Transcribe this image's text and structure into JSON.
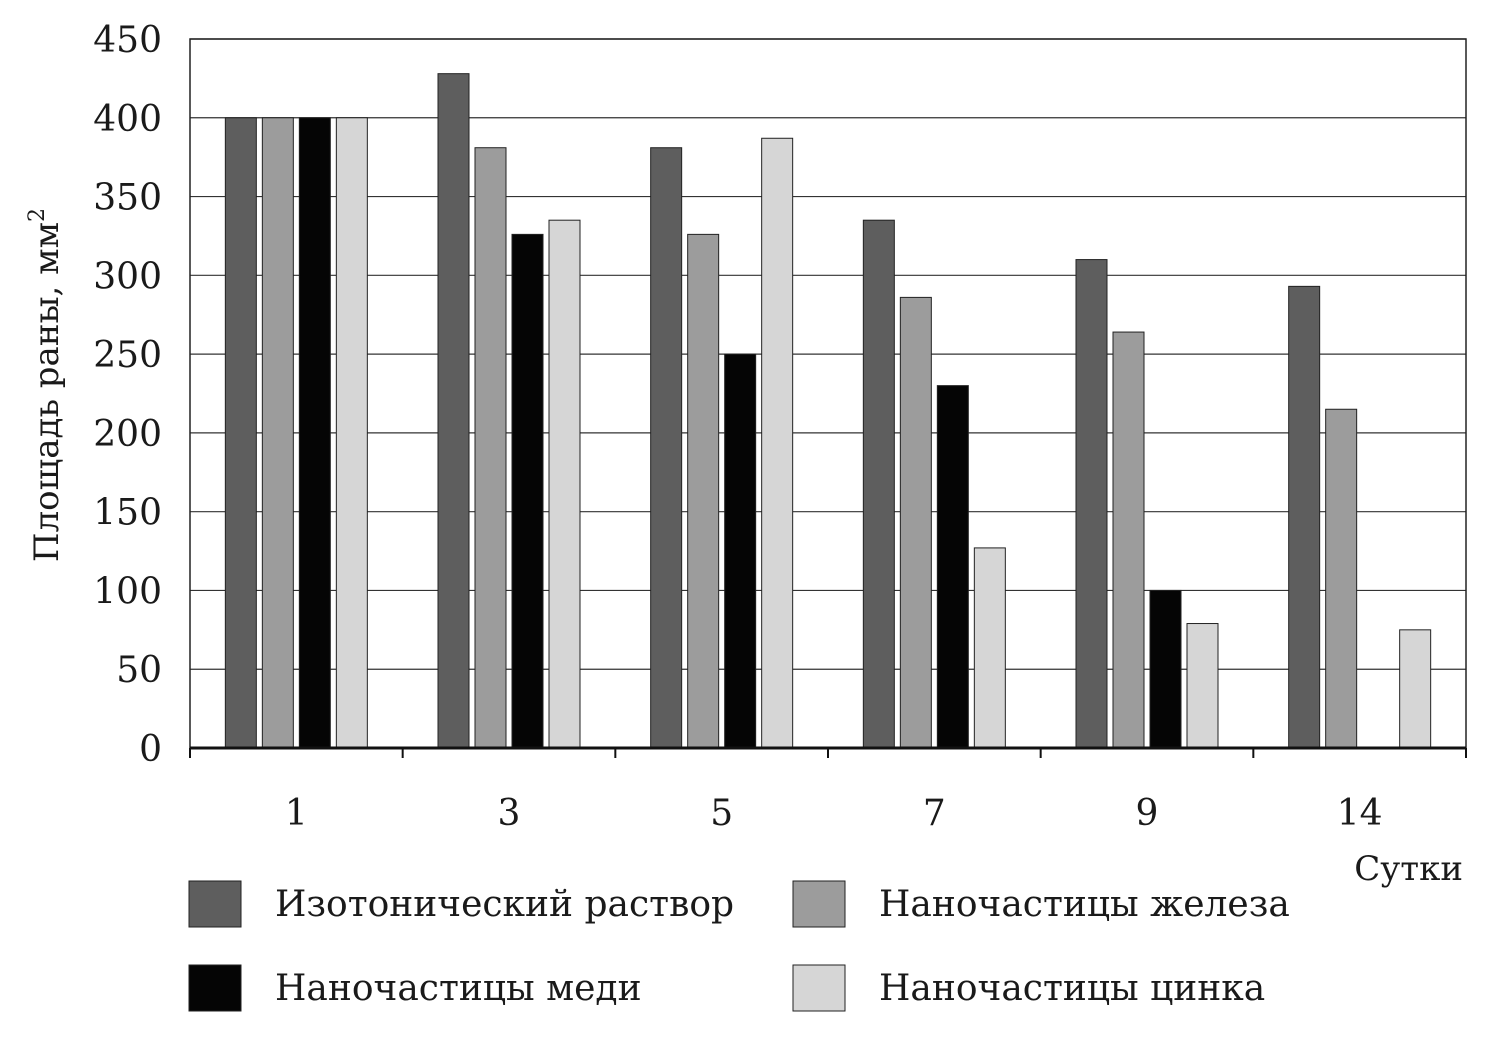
{
  "chart_data": {
    "type": "bar",
    "title": "",
    "xlabel": "Сутки",
    "ylabel": "Площадь раны, мм",
    "ylabel_superscript": "2",
    "categories": [
      "1",
      "3",
      "5",
      "7",
      "9",
      "14"
    ],
    "ylim": [
      0,
      450
    ],
    "yticks": [
      "0",
      "50",
      "100",
      "150",
      "200",
      "250",
      "300",
      "350",
      "400",
      "450"
    ],
    "grid": true,
    "legend_position": "bottom",
    "series": [
      {
        "name": "Изотонический раствор",
        "color": "#5e5e5e",
        "values": [
          400,
          428,
          381,
          335,
          310,
          293
        ]
      },
      {
        "name": "Наночастицы железа",
        "color": "#9c9c9c",
        "values": [
          400,
          381,
          326,
          286,
          264,
          215
        ]
      },
      {
        "name": "Наночастицы меди",
        "color": "#050505",
        "values": [
          400,
          326,
          250,
          230,
          100,
          null
        ]
      },
      {
        "name": "Наночастицы цинка",
        "color": "#d6d6d6",
        "values": [
          400,
          335,
          387,
          127,
          79,
          75
        ]
      }
    ]
  }
}
